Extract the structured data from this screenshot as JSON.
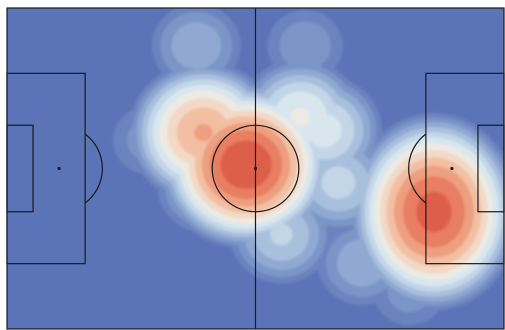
{
  "colors": {
    "background": "#ffffff",
    "pitch_low": "#5b74b7",
    "line": "#1a1a1a",
    "levels": [
      "#6a84bf",
      "#7c95c8",
      "#91a9d2",
      "#a9c0dd",
      "#c3d6e8",
      "#d9e6ee",
      "#ecebe3",
      "#f3d8c6",
      "#f2bfa3",
      "#ee9f80",
      "#e87e62",
      "#de5e48"
    ]
  },
  "chart_data": {
    "type": "heatmap",
    "subtype": "soccer-pitch-kde",
    "pitch": {
      "length": 105,
      "width": 68,
      "markings": [
        "halfway-line",
        "center-circle",
        "penalty-areas",
        "goal-areas",
        "penalty-spots",
        "center-spot",
        "penalty-arcs"
      ]
    },
    "colormap": "coolwarm",
    "levels": 12,
    "density_hotspots": [
      {
        "x": 50.5,
        "y": 34.8,
        "intensity": 1.0
      },
      {
        "x": 41.5,
        "y": 41.6,
        "intensity": 0.78
      },
      {
        "x": 90.2,
        "y": 24.8,
        "intensity": 0.96
      },
      {
        "x": 62.0,
        "y": 45.0,
        "intensity": 0.55
      },
      {
        "x": 67.0,
        "y": 42.0,
        "intensity": 0.5
      },
      {
        "x": 70.0,
        "y": 31.0,
        "intensity": 0.42
      },
      {
        "x": 58.0,
        "y": 20.0,
        "intensity": 0.4
      },
      {
        "x": 40.0,
        "y": 60.0,
        "intensity": 0.3
      },
      {
        "x": 42.0,
        "y": 30.0,
        "intensity": 0.35
      },
      {
        "x": 75.0,
        "y": 14.0,
        "intensity": 0.3
      },
      {
        "x": 30.0,
        "y": 40.0,
        "intensity": 0.2
      },
      {
        "x": 85.0,
        "y": 8.0,
        "intensity": 0.2
      },
      {
        "x": 63.0,
        "y": 60.0,
        "intensity": 0.22
      }
    ],
    "title": "",
    "xlabel": "",
    "ylabel": ""
  }
}
